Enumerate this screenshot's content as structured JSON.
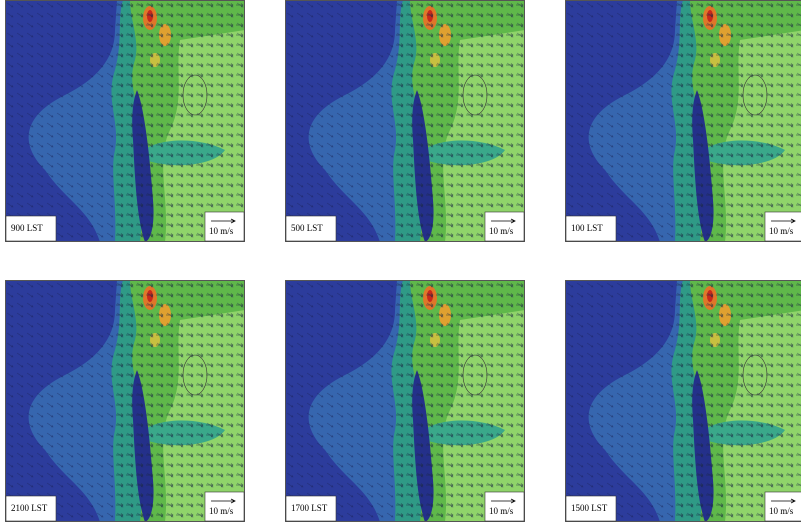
{
  "panels": [
    {
      "time": "900 LST",
      "scale": "10 m/s"
    },
    {
      "time": "500 LST",
      "scale": "10 m/s"
    },
    {
      "time": "100 LST",
      "scale": "10 m/s"
    },
    {
      "time": "2100 LST",
      "scale": "10 m/s"
    },
    {
      "time": "1700 LST",
      "scale": "10 m/s"
    },
    {
      "time": "1500 LST",
      "scale": "10 m/s"
    }
  ]
}
